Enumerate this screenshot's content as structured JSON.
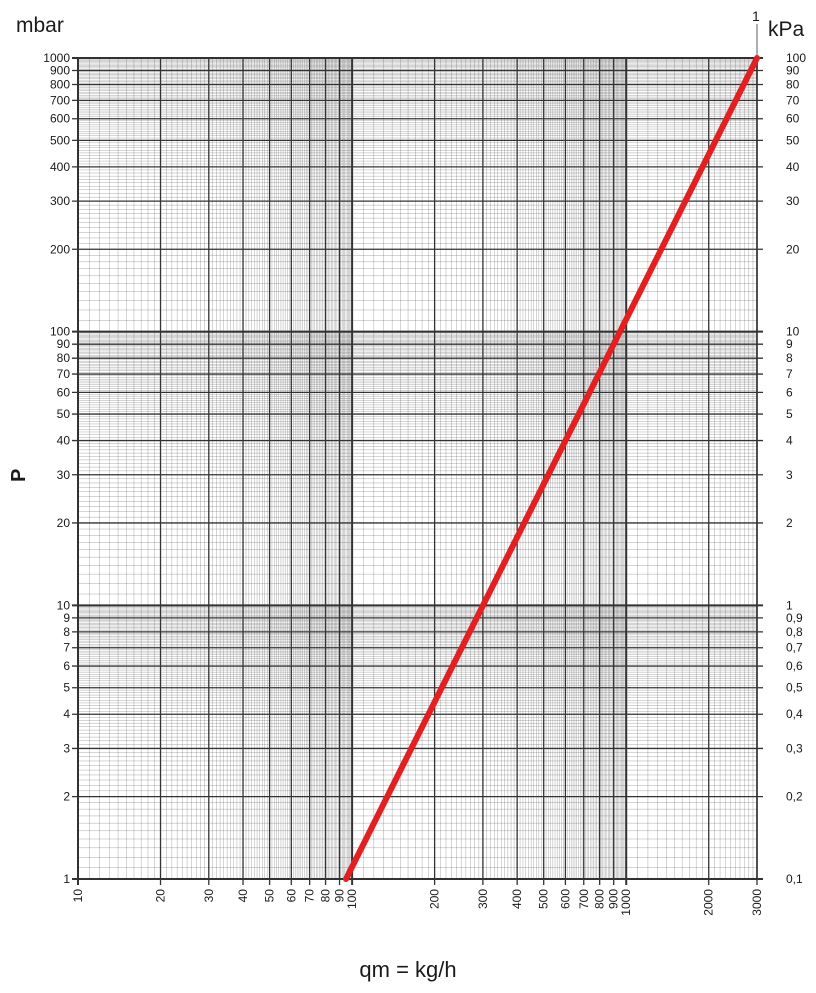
{
  "chart_data": {
    "type": "line",
    "title": "",
    "xlabel": "qm = kg/h",
    "ylabel": "P",
    "y_unit_left": "mbar",
    "y_unit_right": "kPa",
    "top_marker_label": "1",
    "xscale": "log",
    "yscale": "log",
    "xlim": [
      10,
      3000
    ],
    "ylim": [
      1,
      1000
    ],
    "grid": true,
    "x_ticks": [
      {
        "value": 10,
        "label": "10"
      },
      {
        "value": 20,
        "label": "20"
      },
      {
        "value": 30,
        "label": "30"
      },
      {
        "value": 40,
        "label": "40"
      },
      {
        "value": 50,
        "label": "50"
      },
      {
        "value": 60,
        "label": "60"
      },
      {
        "value": 70,
        "label": "70"
      },
      {
        "value": 80,
        "label": "80"
      },
      {
        "value": 90,
        "label": "90"
      },
      {
        "value": 100,
        "label": "100"
      },
      {
        "value": 200,
        "label": "200"
      },
      {
        "value": 300,
        "label": "300"
      },
      {
        "value": 400,
        "label": "400"
      },
      {
        "value": 500,
        "label": "500"
      },
      {
        "value": 600,
        "label": "600"
      },
      {
        "value": 700,
        "label": "700"
      },
      {
        "value": 800,
        "label": "800"
      },
      {
        "value": 900,
        "label": "900"
      },
      {
        "value": 1000,
        "label": "1000"
      },
      {
        "value": 2000,
        "label": "2000"
      },
      {
        "value": 3000,
        "label": "3000"
      }
    ],
    "y_ticks_left": [
      {
        "value": 1,
        "label": "1"
      },
      {
        "value": 2,
        "label": "2"
      },
      {
        "value": 3,
        "label": "3"
      },
      {
        "value": 4,
        "label": "4"
      },
      {
        "value": 5,
        "label": "5"
      },
      {
        "value": 6,
        "label": "6"
      },
      {
        "value": 7,
        "label": "7"
      },
      {
        "value": 8,
        "label": "8"
      },
      {
        "value": 9,
        "label": "9"
      },
      {
        "value": 10,
        "label": "10"
      },
      {
        "value": 20,
        "label": "20"
      },
      {
        "value": 30,
        "label": "30"
      },
      {
        "value": 40,
        "label": "40"
      },
      {
        "value": 50,
        "label": "50"
      },
      {
        "value": 60,
        "label": "60"
      },
      {
        "value": 70,
        "label": "70"
      },
      {
        "value": 80,
        "label": "80"
      },
      {
        "value": 90,
        "label": "90"
      },
      {
        "value": 100,
        "label": "100"
      },
      {
        "value": 200,
        "label": "200"
      },
      {
        "value": 300,
        "label": "300"
      },
      {
        "value": 400,
        "label": "400"
      },
      {
        "value": 500,
        "label": "500"
      },
      {
        "value": 600,
        "label": "600"
      },
      {
        "value": 700,
        "label": "700"
      },
      {
        "value": 800,
        "label": "800"
      },
      {
        "value": 900,
        "label": "900"
      },
      {
        "value": 1000,
        "label": "1000"
      }
    ],
    "y_ticks_right": [
      {
        "value": 1,
        "label": "0,1"
      },
      {
        "value": 2,
        "label": "0,2"
      },
      {
        "value": 3,
        "label": "0,3"
      },
      {
        "value": 4,
        "label": "0,4"
      },
      {
        "value": 5,
        "label": "0,5"
      },
      {
        "value": 6,
        "label": "0,6"
      },
      {
        "value": 7,
        "label": "0,7"
      },
      {
        "value": 8,
        "label": "0,8"
      },
      {
        "value": 9,
        "label": "0,9"
      },
      {
        "value": 10,
        "label": "1"
      },
      {
        "value": 20,
        "label": "2"
      },
      {
        "value": 30,
        "label": "3"
      },
      {
        "value": 40,
        "label": "4"
      },
      {
        "value": 50,
        "label": "5"
      },
      {
        "value": 60,
        "label": "6"
      },
      {
        "value": 70,
        "label": "7"
      },
      {
        "value": 80,
        "label": "8"
      },
      {
        "value": 90,
        "label": "9"
      },
      {
        "value": 100,
        "label": "10"
      },
      {
        "value": 200,
        "label": "20"
      },
      {
        "value": 300,
        "label": "30"
      },
      {
        "value": 400,
        "label": "40"
      },
      {
        "value": 500,
        "label": "50"
      },
      {
        "value": 600,
        "label": "60"
      },
      {
        "value": 700,
        "label": "70"
      },
      {
        "value": 800,
        "label": "80"
      },
      {
        "value": 900,
        "label": "90"
      },
      {
        "value": 1000,
        "label": "100"
      }
    ],
    "series": [
      {
        "color": "#e3201f",
        "points": [
          {
            "x": 95,
            "y": 1
          },
          {
            "x": 3000,
            "y": 1000
          }
        ]
      }
    ],
    "colors": {
      "grid": "#555555",
      "frame": "#333333",
      "curve": "#e3201f"
    }
  }
}
